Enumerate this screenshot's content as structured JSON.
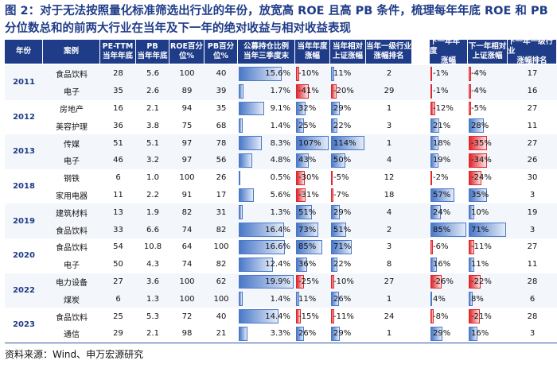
{
  "title": "图 2：对于无法按照量化标准筛选出行业的年份，放宽高 ROE 且高 PB 条件，梳理每年年底 ROE 和 PB 分位数总和的前两大行业在当年及下一年的绝对收益与相对收益表现",
  "header": [
    [
      "年份"
    ],
    [
      "案例"
    ],
    [
      "PE-TTM",
      "当年年底"
    ],
    [
      "PB",
      "当年年底"
    ],
    [
      "ROE百分",
      "位%"
    ],
    [
      "PB百分",
      "位%"
    ],
    [
      "公募持仓比例",
      "当年三季度末"
    ],
    [
      "当年年度",
      "涨幅"
    ],
    [
      "当年相对",
      "上证涨幅"
    ],
    [
      "当年一级行业",
      "涨幅排名"
    ],
    [
      "下一年年度",
      "涨幅"
    ],
    [
      "下一年相对",
      "上证涨幅"
    ],
    [
      "下一年一级行业",
      "涨幅排名"
    ]
  ],
  "groups": [
    {
      "year": "2011",
      "rows": [
        [
          "食品饮料",
          "28",
          "5.6",
          "100",
          "40",
          "15.6%",
          "-10%",
          "11%",
          "2",
          "-1%",
          "-4%",
          "17"
        ],
        [
          "电子",
          "35",
          "2.6",
          "89",
          "39",
          "1.7%",
          "-41%",
          "-20%",
          "29",
          "-1%",
          "-4%",
          "16"
        ]
      ]
    },
    {
      "year": "2012",
      "rows": [
        [
          "房地产",
          "16",
          "2.1",
          "94",
          "35",
          "9.1%",
          "32%",
          "29%",
          "1",
          "-12%",
          "-5%",
          "27"
        ],
        [
          "美容护理",
          "36",
          "3.8",
          "75",
          "68",
          "1.4%",
          "25%",
          "22%",
          "3",
          "21%",
          "28%",
          "11"
        ]
      ]
    },
    {
      "year": "2013",
      "rows": [
        [
          "传媒",
          "51",
          "5.1",
          "97",
          "78",
          "8.3%",
          "107%",
          "114%",
          "1",
          "18%",
          "-35%",
          "27"
        ],
        [
          "电子",
          "46",
          "3.2",
          "97",
          "56",
          "4.8%",
          "43%",
          "50%",
          "4",
          "19%",
          "-34%",
          "26"
        ]
      ]
    },
    {
      "year": "2018",
      "rows": [
        [
          "钢铁",
          "6",
          "1.0",
          "100",
          "26",
          "0.5%",
          "-30%",
          "-5%",
          "12",
          "-2%",
          "-24%",
          "30"
        ],
        [
          "家用电器",
          "11",
          "2.2",
          "91",
          "17",
          "5.6%",
          "-31%",
          "-7%",
          "18",
          "57%",
          "35%",
          "3"
        ]
      ]
    },
    {
      "year": "2019",
      "rows": [
        [
          "建筑材料",
          "13",
          "1.9",
          "82",
          "31",
          "1.3%",
          "51%",
          "29%",
          "4",
          "24%",
          "10%",
          "19"
        ],
        [
          "食品饮料",
          "33",
          "6.6",
          "74",
          "82",
          "16.4%",
          "73%",
          "51%",
          "2",
          "85%",
          "71%",
          "3"
        ]
      ]
    },
    {
      "year": "2020",
      "rows": [
        [
          "食品饮料",
          "54",
          "10.8",
          "64",
          "100",
          "16.6%",
          "85%",
          "71%",
          "3",
          "-6%",
          "-11%",
          "27"
        ],
        [
          "电子",
          "50",
          "4.3",
          "74",
          "82",
          "12.4%",
          "36%",
          "22%",
          "8",
          "16%",
          "11%",
          "11"
        ]
      ]
    },
    {
      "year": "2022",
      "rows": [
        [
          "电力设备",
          "27",
          "3.6",
          "100",
          "62",
          "19.9%",
          "-25%",
          "-10%",
          "27",
          "-26%",
          "-22%",
          "28"
        ],
        [
          "煤炭",
          "6",
          "1.3",
          "100",
          "100",
          "1.4%",
          "11%",
          "26%",
          "1",
          "4%",
          "8%",
          "6"
        ]
      ]
    },
    {
      "year": "2023",
      "rows": [
        [
          "食品饮料",
          "25",
          "5.3",
          "72",
          "40",
          "14.4%",
          "-15%",
          "-11%",
          "24",
          "-8%",
          "-21%",
          "28"
        ],
        [
          "通信",
          "29",
          "2.1",
          "98",
          "21",
          "3.3%",
          "26%",
          "29%",
          "1",
          "29%",
          "16%",
          "3"
        ]
      ]
    }
  ],
  "source": "资料来源：Wind、申万宏源研究"
}
